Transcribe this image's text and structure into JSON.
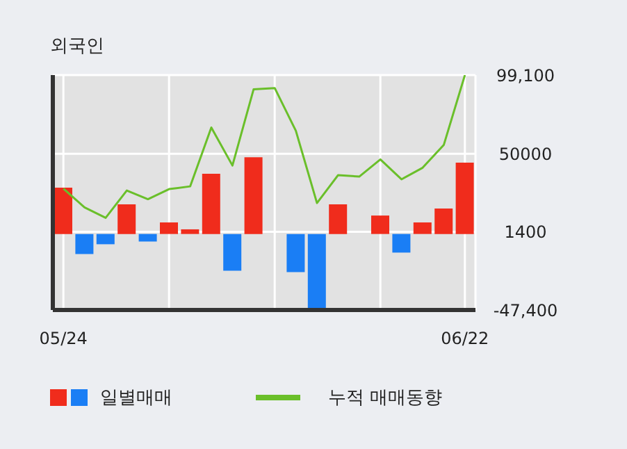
{
  "chart_data": {
    "type": "bar",
    "title": "외국인",
    "categories": [
      "05/24",
      null,
      null,
      null,
      null,
      null,
      null,
      null,
      null,
      null,
      null,
      null,
      null,
      null,
      null,
      null,
      null,
      null,
      null,
      "06/22"
    ],
    "series": [
      {
        "name": "일별매매",
        "colors": [
          "#f02c1c",
          "#1a7ef5",
          "#1a7ef5",
          "#f02c1c",
          "#1a7ef5",
          "#f02c1c",
          "#f02c1c",
          "#f02c1c",
          "#1a7ef5",
          "#f02c1c",
          "#f02c1c",
          "#1a7ef5",
          "#1a7ef5",
          "#f02c1c",
          "#f02c1c",
          "#f02c1c",
          "#1a7ef5",
          "#f02c1c",
          "#f02c1c",
          "#f02c1c"
        ],
        "values": [
          28900,
          -12500,
          -6400,
          18500,
          -4700,
          7200,
          2900,
          37500,
          -22900,
          47900,
          0,
          -23800,
          -46300,
          18500,
          0,
          11500,
          -11600,
          7200,
          15900,
          44500
        ]
      },
      {
        "name": "누적 매매동향",
        "type": "line",
        "color": "#6abf2a",
        "values": [
          28300,
          16600,
          10100,
          27100,
          21700,
          28000,
          29700,
          66400,
          42700,
          90200,
          91000,
          64400,
          19300,
          36700,
          35800,
          46500,
          34100,
          41300,
          55500,
          99100
        ]
      }
    ],
    "ylim": [
      -47400,
      99100
    ],
    "yticks": [
      {
        "value": 99100,
        "label": "99,100"
      },
      50000,
      1400,
      {
        "value": -47400,
        "label": "-47,400"
      }
    ],
    "grid": true,
    "legend": "bottom",
    "marker": "none"
  }
}
